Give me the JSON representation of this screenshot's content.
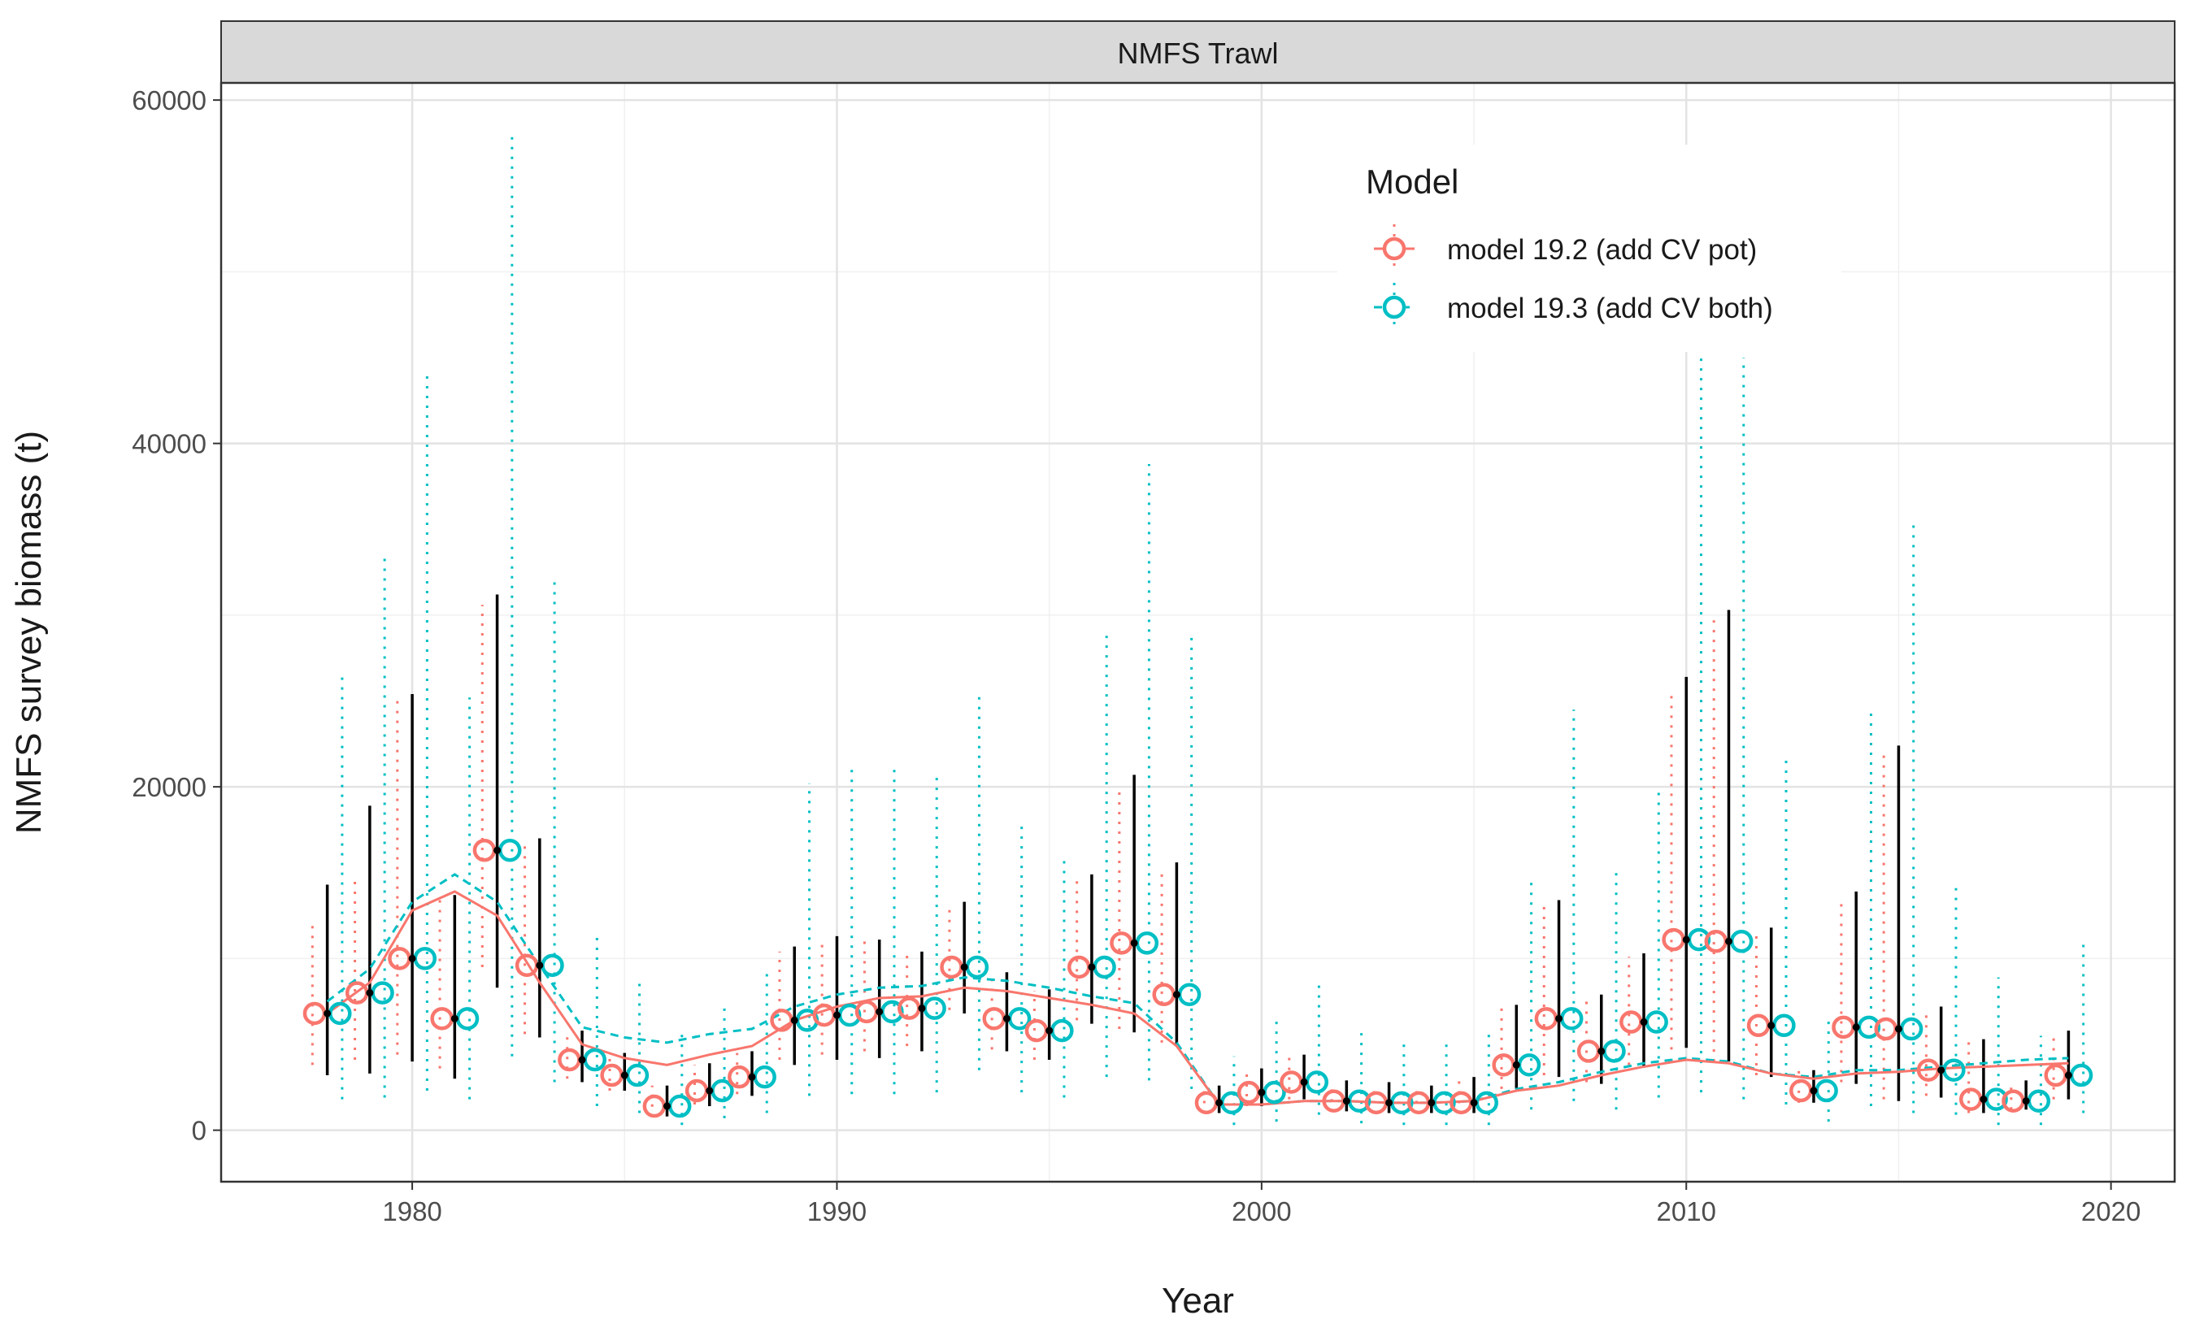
{
  "chart_data": {
    "type": "line",
    "facet_label": "NMFS Trawl",
    "xlabel": "Year",
    "ylabel": "NMFS survey biomass (t)",
    "xlim": [
      1975.5,
      2021.5
    ],
    "ylim": [
      -3000,
      61000
    ],
    "x_ticks": [
      1980,
      1990,
      2000,
      2010,
      2020
    ],
    "y_ticks": [
      0,
      20000,
      40000,
      60000
    ],
    "grid": true,
    "legend": {
      "title": "Model",
      "placement": "top-right-inside",
      "entries": [
        "model 19.2 (add CV pot)",
        "model 19.3 (add CV both)"
      ]
    },
    "colors": {
      "model_19_2": "#F8766D",
      "model_19_3": "#00BFC4",
      "observed_error": "#000000"
    },
    "observed": {
      "years": [
        1978,
        1979,
        1980,
        1981,
        1982,
        1983,
        1984,
        1985,
        1986,
        1987,
        1988,
        1989,
        1990,
        1991,
        1992,
        1993,
        1994,
        1995,
        1996,
        1997,
        1998,
        1999,
        2000,
        2001,
        2002,
        2003,
        2004,
        2005,
        2006,
        2007,
        2008,
        2009,
        2010,
        2011,
        2012,
        2013,
        2014,
        2015,
        2016,
        2017,
        2018,
        2019
      ],
      "values": [
        6800,
        8000,
        10000,
        6500,
        16300,
        9600,
        4100,
        3200,
        1400,
        2300,
        3100,
        6400,
        6700,
        6900,
        7100,
        9500,
        6500,
        5800,
        9500,
        10900,
        7900,
        1600,
        2200,
        2800,
        1700,
        1600,
        1600,
        1600,
        3800,
        6500,
        4600,
        6300,
        11100,
        11000,
        6100,
        2300,
        6000,
        5900,
        3500,
        1800,
        1700,
        3200
      ],
      "lower": [
        3200,
        3300,
        4000,
        3000,
        8300,
        5400,
        2800,
        2300,
        800,
        1400,
        2000,
        3800,
        4100,
        4200,
        4600,
        6800,
        4600,
        4100,
        6200,
        5700,
        4900,
        1000,
        1400,
        1800,
        1100,
        1000,
        1000,
        1000,
        2400,
        3100,
        2700,
        3700,
        4800,
        4000,
        3100,
        1600,
        2700,
        1700,
        1900,
        1000,
        1200,
        1800
      ],
      "upper": [
        14300,
        18900,
        25400,
        13700,
        31200,
        17000,
        5800,
        4500,
        2600,
        3900,
        4600,
        10700,
        11300,
        11100,
        10400,
        13300,
        9200,
        8200,
        14900,
        20700,
        15600,
        2600,
        3600,
        4400,
        2900,
        2800,
        2600,
        3100,
        7300,
        13400,
        7900,
        10300,
        26400,
        30300,
        11800,
        3500,
        13900,
        22400,
        7200,
        5300,
        2900,
        5800
      ]
    },
    "series": [
      {
        "name": "model 19.2 (add CV pot)",
        "x": [
          1978,
          1979,
          1980,
          1981,
          1982,
          1983,
          1984,
          1985,
          1986,
          1987,
          1988,
          1989,
          1990,
          1991,
          1992,
          1993,
          1994,
          1995,
          1996,
          1997,
          1998,
          1999,
          2000,
          2001,
          2002,
          2003,
          2004,
          2005,
          2006,
          2007,
          2008,
          2009,
          2010,
          2011,
          2012,
          2013,
          2014,
          2015,
          2016,
          2017,
          2018,
          2019
        ],
        "fit": [
          6800,
          8600,
          12800,
          13900,
          12500,
          8600,
          5000,
          4200,
          3800,
          4400,
          4900,
          6400,
          7200,
          7700,
          7800,
          8300,
          8100,
          7700,
          7300,
          6800,
          4900,
          1500,
          1500,
          1700,
          1700,
          1600,
          1600,
          1700,
          2300,
          2600,
          3200,
          3700,
          4100,
          3900,
          3300,
          3000,
          3300,
          3400,
          3600,
          3700,
          3800,
          3900
        ],
        "obs_lower": [
          3800,
          4100,
          4400,
          3600,
          9500,
          5600,
          3000,
          2300,
          800,
          1500,
          2100,
          4100,
          4400,
          4600,
          4900,
          7000,
          4700,
          4100,
          6400,
          5900,
          5100,
          1000,
          1400,
          1800,
          1100,
          1000,
          1000,
          1000,
          2400,
          3200,
          2800,
          3800,
          4700,
          4000,
          3200,
          1600,
          2800,
          1800,
          2000,
          1000,
          1200,
          1800
        ],
        "obs_upper": [
          12100,
          14500,
          25400,
          13800,
          30600,
          16900,
          5700,
          4500,
          2600,
          3800,
          4500,
          10400,
          11000,
          11100,
          10500,
          13100,
          9100,
          8100,
          14700,
          20100,
          15300,
          2600,
          3500,
          4300,
          2800,
          2700,
          2600,
          3000,
          7100,
          13200,
          7800,
          10100,
          25600,
          29700,
          11600,
          3500,
          13500,
          22000,
          7000,
          5300,
          2900,
          5700
        ]
      },
      {
        "name": "model 19.3 (add CV both)",
        "x": [
          1978,
          1979,
          1980,
          1981,
          1982,
          1983,
          1984,
          1985,
          1986,
          1987,
          1988,
          1989,
          1990,
          1991,
          1992,
          1993,
          1994,
          1995,
          1996,
          1997,
          1998,
          1999,
          2000,
          2001,
          2002,
          2003,
          2004,
          2005,
          2006,
          2007,
          2008,
          2009,
          2010,
          2011,
          2012,
          2013,
          2014,
          2015,
          2016,
          2017,
          2018,
          2019
        ],
        "fit": [
          7500,
          9400,
          13300,
          14900,
          13300,
          9600,
          6000,
          5400,
          5100,
          5600,
          5900,
          7200,
          7900,
          8300,
          8400,
          8900,
          8700,
          8300,
          7800,
          7400,
          5100,
          1500,
          1500,
          1700,
          1700,
          1600,
          1600,
          1700,
          2400,
          2800,
          3400,
          3900,
          4200,
          4000,
          3300,
          3100,
          3500,
          3500,
          3700,
          3900,
          4100,
          4200
        ],
        "obs_lower": [
          1800,
          1900,
          2300,
          1800,
          4300,
          2800,
          1400,
          1000,
          300,
          700,
          1000,
          2000,
          2100,
          2100,
          2200,
          3500,
          2200,
          1900,
          3100,
          2900,
          2400,
          300,
          500,
          900,
          400,
          300,
          300,
          300,
          1200,
          1700,
          1200,
          1900,
          2200,
          1800,
          1500,
          500,
          1400,
          1000,
          900,
          300,
          300,
          1000
        ],
        "obs_upper": [
          26400,
          33300,
          44200,
          25200,
          57900,
          32000,
          11300,
          8900,
          5900,
          7500,
          9300,
          20200,
          21200,
          21400,
          20600,
          25600,
          17700,
          16000,
          28800,
          38800,
          29100,
          4300,
          6700,
          8700,
          5900,
          5100,
          5000,
          5700,
          14500,
          24500,
          15400,
          19700,
          45000,
          45000,
          21700,
          6400,
          24500,
          35400,
          14100,
          8900,
          5500,
          10900
        ]
      }
    ]
  }
}
